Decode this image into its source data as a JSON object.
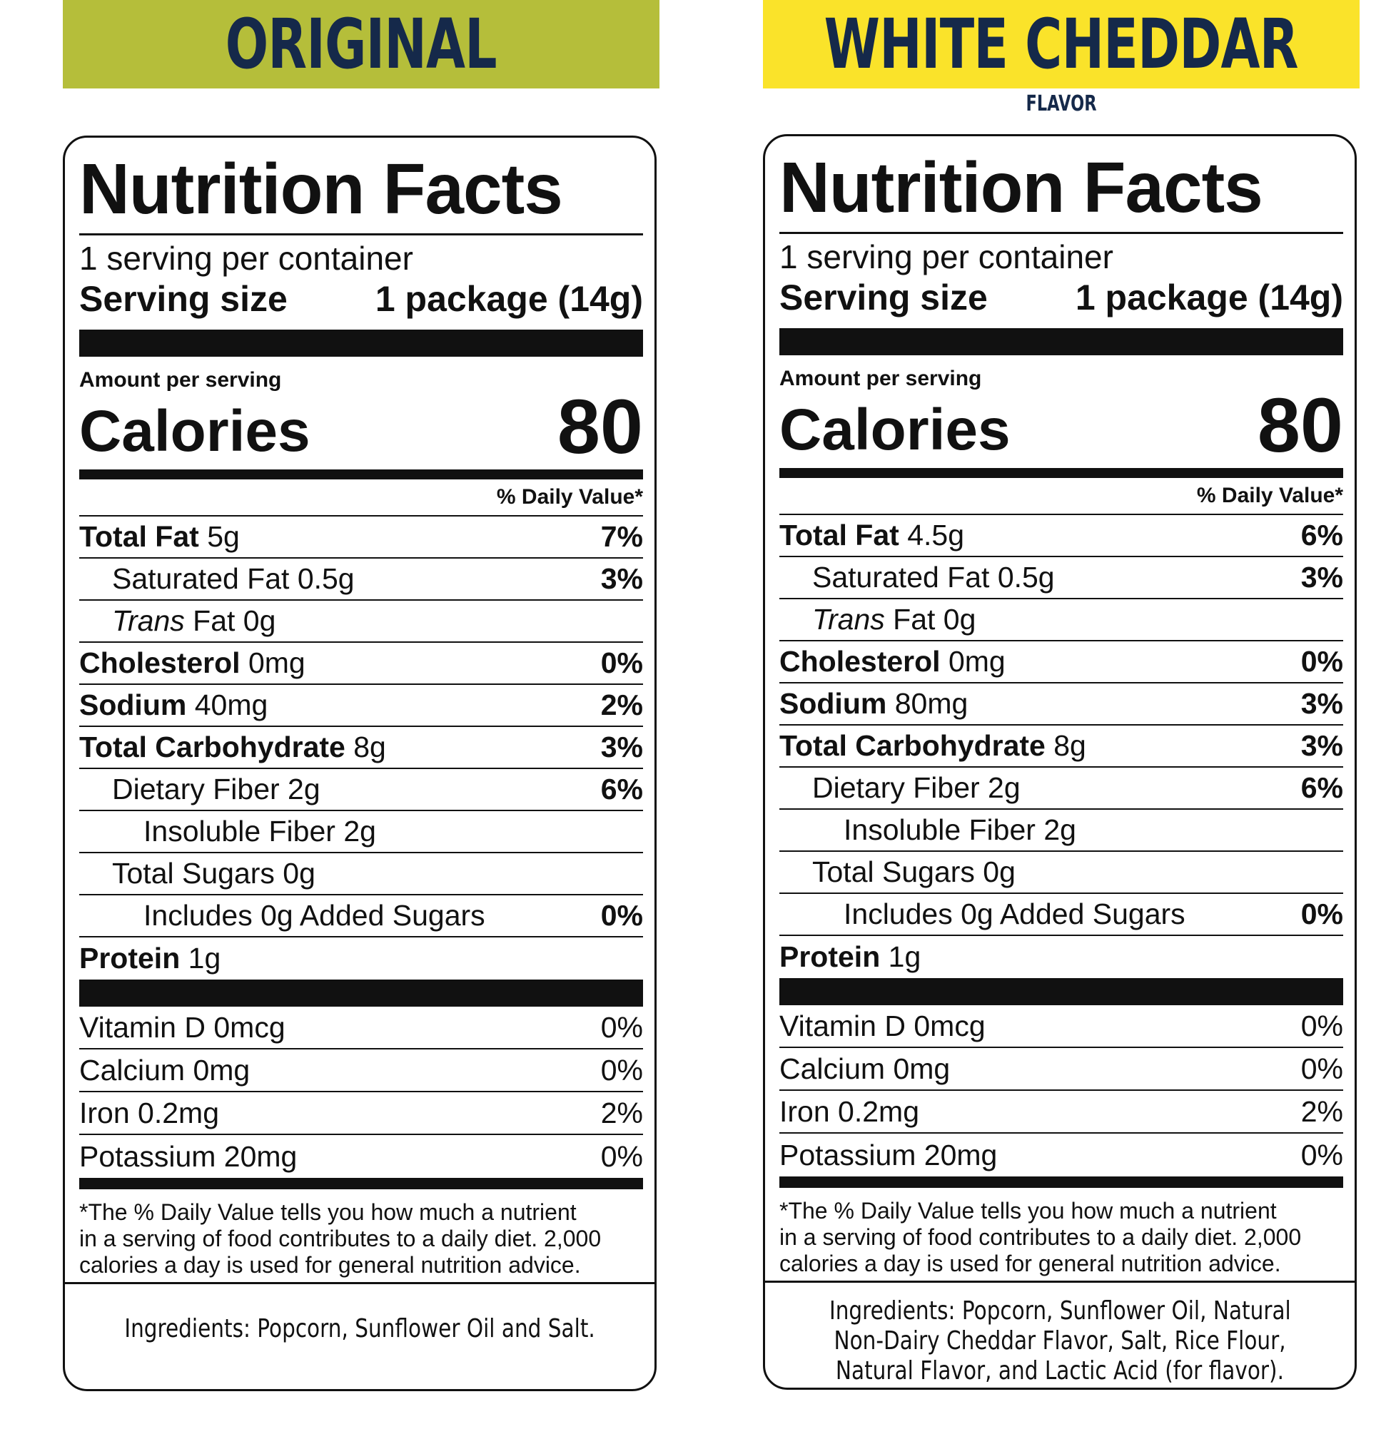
{
  "products": [
    {
      "name": "ORIGINAL",
      "banner_color": "#b5be3a",
      "flavor_subtitle": "",
      "title": "Nutrition Facts",
      "servings_per_container": "1 serving per container",
      "serving_size_label": "Serving size",
      "serving_size_value": "1 package (14g)",
      "amount_per_serving": "Amount per serving",
      "calories_label": "Calories",
      "calories_value": "80",
      "daily_value_header": "% Daily Value*",
      "total_fat": {
        "label": "Total Fat",
        "amount": "5g",
        "dv": "7%"
      },
      "saturated_fat": {
        "label": "Saturated Fat 0.5g",
        "dv": "3%"
      },
      "trans_fat": {
        "label_italic": "Trans",
        "label_rest": " Fat 0g"
      },
      "cholesterol": {
        "label": "Cholesterol",
        "amount": "0mg",
        "dv": "0%"
      },
      "sodium": {
        "label": "Sodium",
        "amount": "40mg",
        "dv": "2%"
      },
      "total_carb": {
        "label": "Total Carbohydrate",
        "amount": "8g",
        "dv": "3%"
      },
      "dietary_fiber": {
        "label": "Dietary Fiber 2g",
        "dv": "6%"
      },
      "insoluble_fiber": {
        "label": "Insoluble Fiber 2g"
      },
      "total_sugars": {
        "label": "Total Sugars 0g"
      },
      "added_sugars": {
        "label": "Includes 0g Added Sugars",
        "dv": "0%"
      },
      "protein": {
        "label": "Protein",
        "amount": "1g"
      },
      "vitamin_d": {
        "label": "Vitamin D 0mcg",
        "dv": "0%"
      },
      "calcium": {
        "label": "Calcium 0mg",
        "dv": "0%"
      },
      "iron": {
        "label": "Iron 0.2mg",
        "dv": "2%"
      },
      "potassium": {
        "label": "Potassium 20mg",
        "dv": "0%"
      },
      "footnote_lines": [
        "*The % Daily Value tells you how much a nutrient",
        "in a serving of food contributes to a daily diet. 2,000",
        "calories a day is used for general nutrition advice."
      ],
      "ingredients_lines": [
        "Ingredients: Popcorn, Sunflower Oil and Salt."
      ]
    },
    {
      "name": "WHITE CHEDDAR",
      "banner_color": "#fae32a",
      "flavor_subtitle": "FLAVOR",
      "title": "Nutrition Facts",
      "servings_per_container": "1 serving per container",
      "serving_size_label": "Serving size",
      "serving_size_value": "1 package (14g)",
      "amount_per_serving": "Amount per serving",
      "calories_label": "Calories",
      "calories_value": "80",
      "daily_value_header": "% Daily Value*",
      "total_fat": {
        "label": "Total Fat",
        "amount": "4.5g",
        "dv": "6%"
      },
      "saturated_fat": {
        "label": "Saturated Fat 0.5g",
        "dv": "3%"
      },
      "trans_fat": {
        "label_italic": "Trans",
        "label_rest": " Fat 0g"
      },
      "cholesterol": {
        "label": "Cholesterol",
        "amount": "0mg",
        "dv": "0%"
      },
      "sodium": {
        "label": "Sodium",
        "amount": "80mg",
        "dv": "3%"
      },
      "total_carb": {
        "label": "Total Carbohydrate",
        "amount": "8g",
        "dv": "3%"
      },
      "dietary_fiber": {
        "label": "Dietary Fiber 2g",
        "dv": "6%"
      },
      "insoluble_fiber": {
        "label": "Insoluble Fiber 2g"
      },
      "total_sugars": {
        "label": "Total Sugars 0g"
      },
      "added_sugars": {
        "label": "Includes 0g Added Sugars",
        "dv": "0%"
      },
      "protein": {
        "label": "Protein",
        "amount": "1g"
      },
      "vitamin_d": {
        "label": "Vitamin D 0mcg",
        "dv": "0%"
      },
      "calcium": {
        "label": "Calcium 0mg",
        "dv": "0%"
      },
      "iron": {
        "label": "Iron 0.2mg",
        "dv": "2%"
      },
      "potassium": {
        "label": "Potassium 20mg",
        "dv": "0%"
      },
      "footnote_lines": [
        "*The % Daily Value tells you how much a nutrient",
        "in a serving of food contributes to a daily diet. 2,000",
        "calories a day is used for general nutrition advice."
      ],
      "ingredients_lines": [
        "Ingredients: Popcorn, Sunflower Oil, Natural",
        "Non-Dairy Cheddar Flavor, Salt, Rice Flour,",
        "Natural Flavor, and Lactic Acid (for flavor)."
      ]
    }
  ]
}
